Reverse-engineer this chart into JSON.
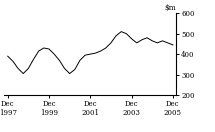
{
  "ylim": [
    200,
    600
  ],
  "yticks": [
    200,
    300,
    400,
    500,
    600
  ],
  "xtick_labels": [
    "Dec\n1997",
    "Dec\n1999",
    "Dec\n2001",
    "Dec\n2003",
    "Dec\n2005"
  ],
  "xtick_positions": [
    0,
    24,
    48,
    72,
    96
  ],
  "line_color": "#000000",
  "background_color": "#ffffff",
  "x": [
    0,
    3,
    6,
    9,
    12,
    15,
    18,
    21,
    24,
    27,
    30,
    33,
    36,
    39,
    42,
    45,
    48,
    51,
    54,
    57,
    60,
    63,
    66,
    69,
    72,
    75,
    78,
    81,
    84,
    87,
    90,
    93,
    96
  ],
  "y": [
    390,
    365,
    330,
    305,
    330,
    375,
    415,
    430,
    425,
    400,
    370,
    330,
    305,
    325,
    370,
    395,
    400,
    405,
    415,
    430,
    455,
    490,
    510,
    500,
    475,
    455,
    470,
    480,
    465,
    455,
    465,
    455,
    445
  ]
}
